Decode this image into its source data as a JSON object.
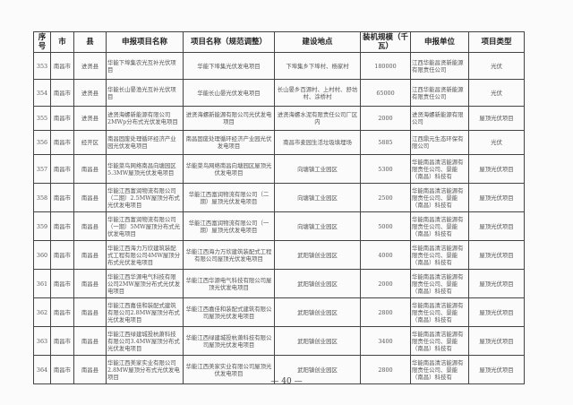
{
  "headers": [
    "序号",
    "市",
    "县",
    "申报项目名称",
    "项目名称（规范调整）",
    "建设地点",
    "装机规模（千瓦）",
    "申报单位",
    "项目类型"
  ],
  "rows": [
    [
      "353",
      "南昌市",
      "进贤县",
      "华能下埠集农光互补光伏项目",
      "华能下埠集光伏发电项目",
      "下埠集乡下埠村、杨家村",
      "180000",
      "江西华能昌贤新能源有限责任公司",
      "光伏"
    ],
    [
      "354",
      "南昌市",
      "进贤县",
      "华能长山晏渔光互补光伏项目",
      "华能长山晏光伏发电项目",
      "长山晏乡百源村、上村村、舒坊村、涂桥村",
      "65000",
      "江西华能昌贤新能源有限责任公司",
      "光伏"
    ],
    [
      "355",
      "南昌市",
      "进贤县",
      "进贤海螺新能源有限公司2MWp分布式光伏发电项目",
      "进贤海螺新能源有限公司光伏发电项目",
      "进贤海螺水泥有限责任公司厂区内",
      "2000",
      "进贤海螺新能源有限公司",
      "屋顶光伏项目"
    ],
    [
      "356",
      "南昌市",
      "经开区",
      "南昌固废处理循环经济产业园光伏发电项目",
      "南昌固废处理循环经济产业园光伏发电项目",
      "南昌市麦园生活垃圾填埋场",
      "5885",
      "江西鼎元生态环保有限公司",
      "光伏"
    ],
    [
      "357",
      "南昌市",
      "南昌县",
      "华能菜鸟网络南昌向塘园区5.3MW屋顶光伏发电项目",
      "华能菜鸟网络南昌向塘园区屋顶光伏发电项目",
      "向塘镇工业园区",
      "5300",
      "华能南昌清洁能源有限责任公司、景能（南昌）科技有",
      "屋顶光伏项目"
    ],
    [
      "358",
      "南昌市",
      "南昌县",
      "华能江西富润物流有限公司（二期）2.5MW屋顶分布式光伏发电项目",
      "华能江西富润物流有限公司（二期）屋顶光伏发电项目",
      "向塘镇工业园区",
      "2500",
      "华能南昌清洁能源有限责任公司、景能（南昌）科技有",
      "屋顶光伏项目"
    ],
    [
      "359",
      "南昌市",
      "南昌县",
      "华能江西富润物流有限公司（一期）5MW屋顶分布式光伏发电项目",
      "华能江西富润物流有限公司（一期）屋顶光伏发电项目",
      "向塘镇工业园区",
      "5000",
      "华能南昌清洁能源有限责任公司、景能（南昌）科技有",
      "屋顶光伏项目"
    ],
    [
      "360",
      "南昌市",
      "南昌县",
      "华能江西海力万欣建筑装配式工程有限公司4MW屋顶分布式光伏发电项目",
      "华能江西海力万欣建筑装配式工程有限公司屋顶光伏发电项目",
      "武阳镇创业园区",
      "4000",
      "华能南昌清洁能源有限责任公司、景能（南昌）科技有",
      "屋顶光伏项目"
    ],
    [
      "361",
      "南昌市",
      "南昌县",
      "华能江西华源电气科技有限公司2MW屋顶分布式光伏发电项目",
      "华能江西华源电气科技有限公司屋顶光伏发电项目",
      "武阳镇创业园区",
      "2000",
      "华能南昌清洁能源有限责任公司、景能（南昌）科技有",
      "屋顶光伏项目"
    ],
    [
      "362",
      "南昌市",
      "南昌县",
      "华能江西嘉佳和装配式建筑有限公司2.8MW屋顶分布式光伏发电项目",
      "华能江西嘉佳和装配式建筑有限公司屋顶光伏发电项目",
      "武阳镇创业园区",
      "2800",
      "华能南昌清洁能源有限责任公司、景能（南昌）科技有",
      "屋顶光伏项目"
    ],
    [
      "363",
      "南昌市",
      "南昌县",
      "华能江西绿建城投杭萧科技有限公司3.4MW屋顶分布式光伏发电项目",
      "华能江西绿建城投杭萧科技有限公司屋顶光伏发电项目",
      "武阳镇创业园区",
      "3400",
      "华能南昌清洁能源有限责任公司、景能（南昌）科技有",
      "屋顶光伏项目"
    ],
    [
      "364",
      "南昌市",
      "南昌县",
      "华能江西美家实业有限公司2.8MW屋顶分布式光伏发电项目",
      "华能江西美家实业有限公司屋顶光伏发电项目",
      "武阳镇创业园区",
      "2800",
      "华能南昌清洁能源有限责任公司、景能（南昌）科技有",
      "屋顶光伏项目"
    ]
  ],
  "page_number": "— 40 —"
}
